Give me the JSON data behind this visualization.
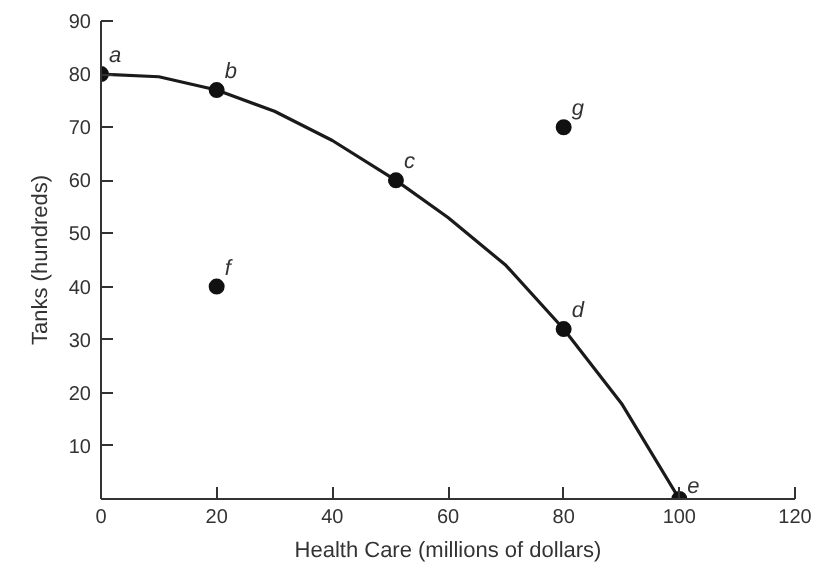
{
  "chart_data": {
    "type": "scatter",
    "xlabel": "Health Care (millions of dollars)",
    "ylabel": "Tanks (hundreds)",
    "xlim": [
      0,
      120
    ],
    "ylim": [
      0,
      90
    ],
    "xticks": [
      0,
      20,
      40,
      60,
      80,
      100,
      120
    ],
    "yticks": [
      10,
      20,
      30,
      40,
      50,
      60,
      70,
      80,
      90
    ],
    "grid": false,
    "series": [
      {
        "type": "line",
        "color": "#1a1a1a",
        "marker": "none",
        "x": [
          0,
          10,
          20,
          30,
          40,
          51,
          60,
          70,
          80,
          90,
          100
        ],
        "values": [
          80,
          79.5,
          77,
          73,
          67.5,
          60,
          53,
          44,
          32,
          18,
          0
        ]
      },
      {
        "color": "#111111",
        "marker": "circle",
        "x": [
          0,
          20,
          51,
          80,
          100,
          20,
          80
        ],
        "values": [
          80,
          77,
          60,
          32,
          0,
          40,
          70
        ]
      }
    ],
    "annotations": [
      {
        "text": "a",
        "x": 0,
        "y": 80
      },
      {
        "text": "b",
        "x": 20,
        "y": 77
      },
      {
        "text": "c",
        "x": 51,
        "y": 60
      },
      {
        "text": "d",
        "x": 80,
        "y": 32
      },
      {
        "text": "e",
        "x": 100,
        "y": 0
      },
      {
        "text": "f",
        "x": 20,
        "y": 40
      },
      {
        "text": "g",
        "x": 80,
        "y": 70
      }
    ]
  }
}
